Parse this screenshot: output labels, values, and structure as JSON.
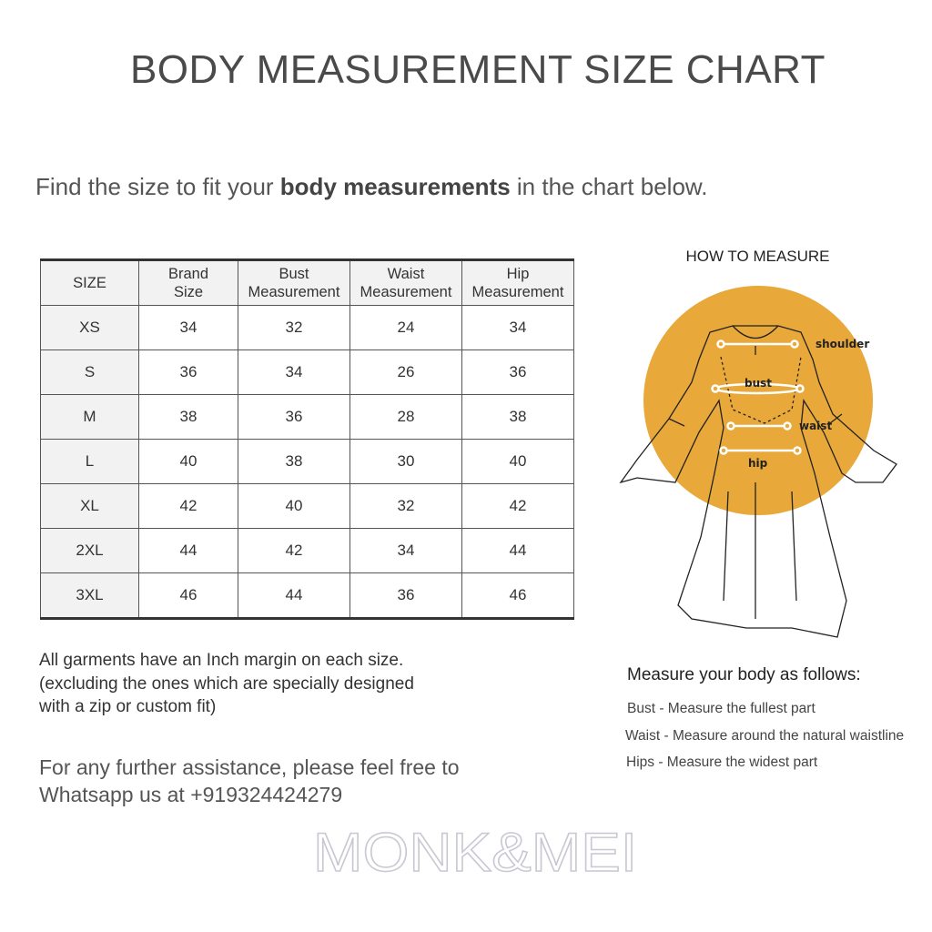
{
  "title": "BODY MEASUREMENT SIZE CHART",
  "intro": {
    "before": "Find the size to fit your ",
    "bold": "body measurements",
    "after": " in the chart below."
  },
  "table": {
    "headers": [
      [
        "SIZE"
      ],
      [
        "Brand",
        "Size"
      ],
      [
        "Bust",
        "Measurement"
      ],
      [
        "Waist",
        "Measurement"
      ],
      [
        "Hip",
        "Measurement"
      ]
    ],
    "rows": [
      [
        "XS",
        "34",
        "32",
        "24",
        "34"
      ],
      [
        "S",
        "36",
        "34",
        "26",
        "36"
      ],
      [
        "M",
        "38",
        "36",
        "28",
        "38"
      ],
      [
        "L",
        "40",
        "38",
        "30",
        "40"
      ],
      [
        "XL",
        "42",
        "40",
        "32",
        "42"
      ],
      [
        "2XL",
        "44",
        "42",
        "34",
        "44"
      ],
      [
        "3XL",
        "46",
        "44",
        "36",
        "46"
      ]
    ]
  },
  "note": [
    "All garments have an Inch margin on each size.",
    "(excluding the ones which are specially designed",
    "with a zip or custom fit)"
  ],
  "assist": [
    "For any further assistance, please feel free to",
    "Whatsapp us at +919324424279"
  ],
  "how_to": {
    "title": "HOW TO MEASURE",
    "labels": {
      "shoulder": "shoulder",
      "bust": "bust",
      "waist": "waist",
      "hip": "hip"
    },
    "accent": "#e8a83a",
    "measure_title": "Measure your body as follows:",
    "lines": [
      "Bust - Measure the fullest part",
      "Waist - Measure around the natural waistline",
      "Hips - Measure the widest part"
    ]
  },
  "logo": {
    "text": "MONK&MEI",
    "color": "#d8d8e0"
  }
}
